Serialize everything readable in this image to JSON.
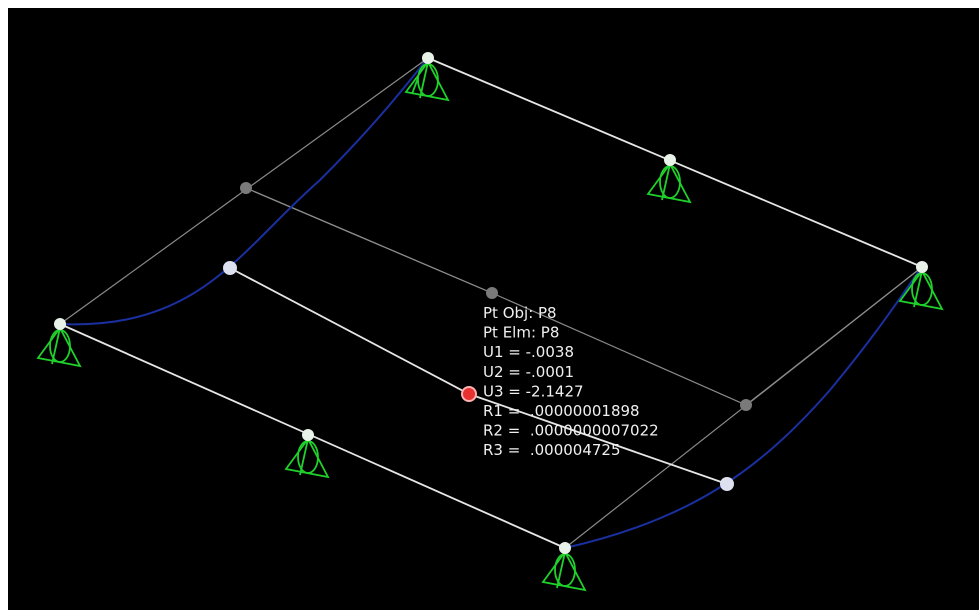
{
  "tooltip": {
    "lines": [
      "Pt Obj: P8",
      "Pt Elm: P8",
      "U1 = -.0038",
      "U2 = -.0001",
      "U3 = -2.1427",
      "R1 =  .00000001898",
      "R2 =  .0000000007022",
      "R3 =  .000004725"
    ]
  }
}
